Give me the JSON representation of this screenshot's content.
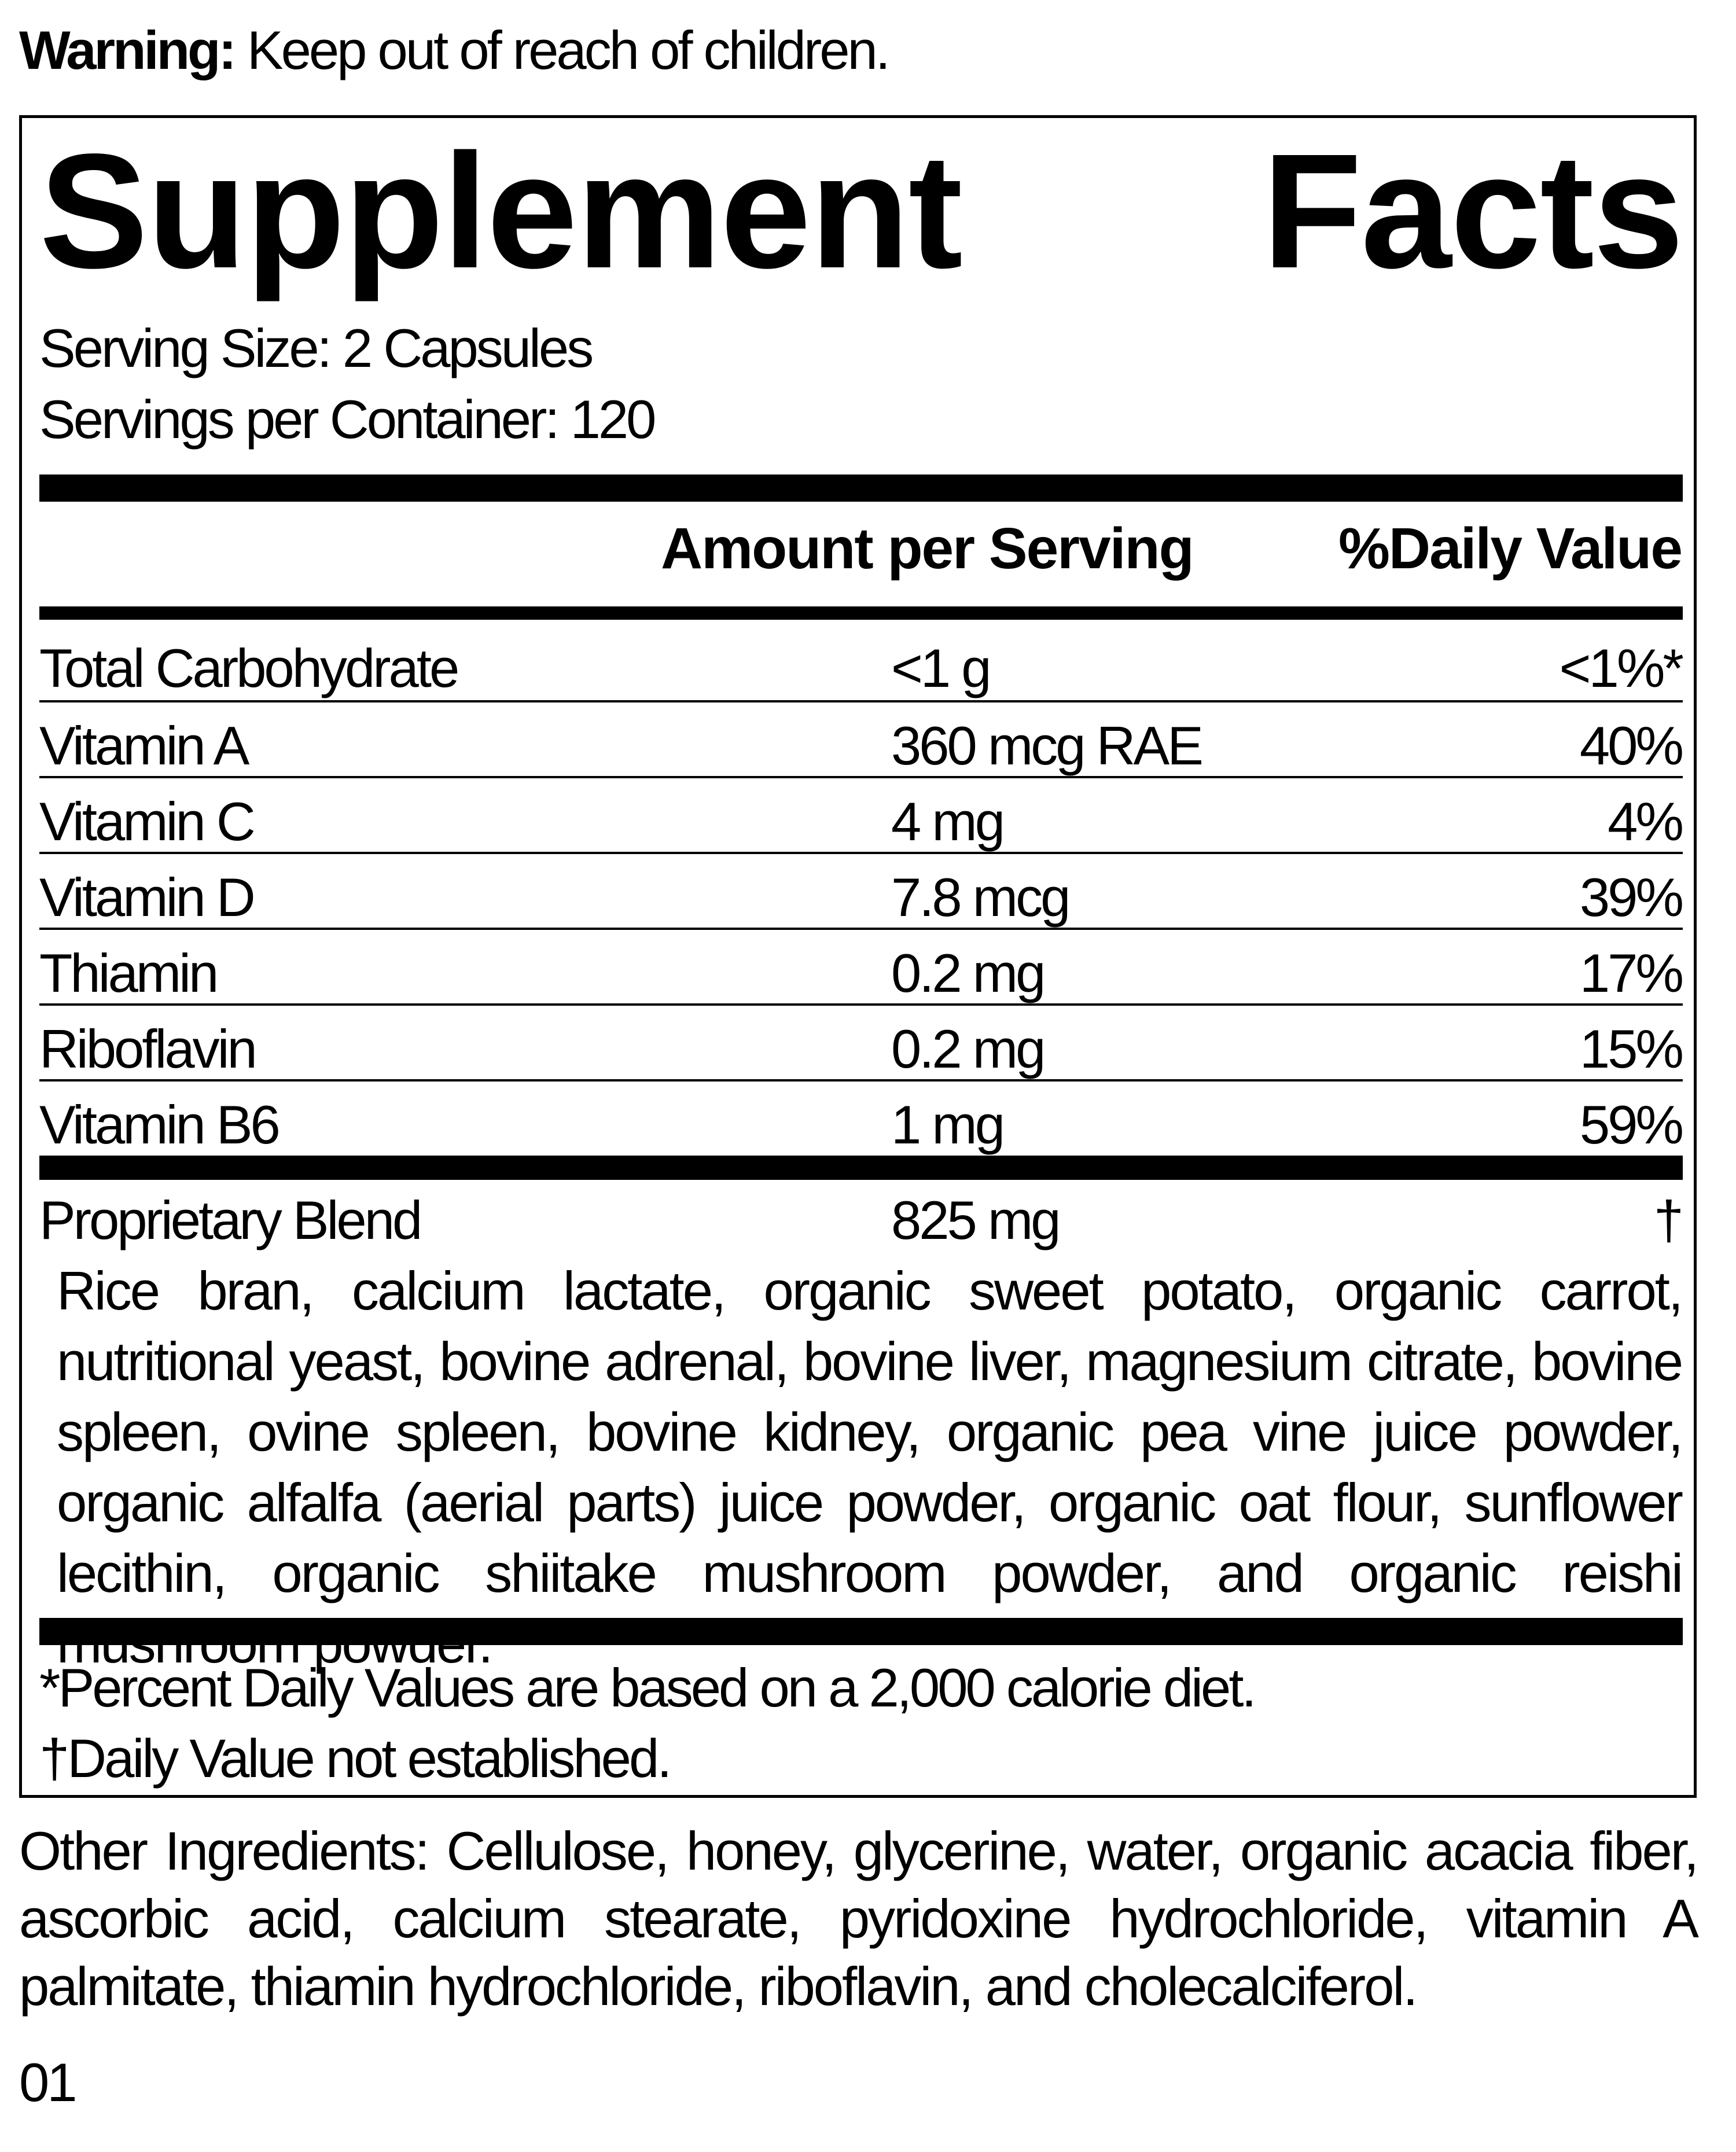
{
  "warning": {
    "label": "Warning:",
    "text": "Keep out of reach of children."
  },
  "title": {
    "word1": "Supplement",
    "word2": "Facts"
  },
  "serving_size": "Serving Size: 2 Capsules",
  "servings_per_container": "Servings per Container: 120",
  "header": {
    "amount": "Amount per Serving",
    "daily_value": "%Daily Value"
  },
  "rows": [
    {
      "name": "Total Carbohydrate",
      "amount": "<1 g",
      "dv": "<1%*"
    },
    {
      "name": "Vitamin A",
      "amount": "360 mcg RAE",
      "dv": "40%"
    },
    {
      "name": "Vitamin C",
      "amount": "4 mg",
      "dv": "4%"
    },
    {
      "name": "Vitamin D",
      "amount": "7.8 mcg",
      "dv": "39%"
    },
    {
      "name": "Thiamin",
      "amount": "0.2 mg",
      "dv": "17%"
    },
    {
      "name": "Riboflavin",
      "amount": "0.2 mg",
      "dv": "15%"
    },
    {
      "name": "Vitamin B6",
      "amount": "1 mg",
      "dv": "59%"
    }
  ],
  "blend": {
    "name": "Proprietary Blend",
    "amount": "825 mg",
    "dv": "†",
    "ingredients": "Rice bran, calcium lactate, organic sweet potato, organic carrot, nutritional yeast, bovine adrenal, bovine liver, magnesium citrate, bovine spleen, ovine spleen, bovine kidney, organic pea vine juice powder, organic alfalfa (aerial parts) juice powder, organic oat flour, sunflower lecithin, organic shiitake mushroom powder, and organic reishi mushroom powder."
  },
  "footnotes": [
    "*Percent Daily Values are based on a 2,000 calorie diet.",
    "†Daily Value not established."
  ],
  "other_ingredients": "Other Ingredients: Cellulose, honey, glycerine, water, organic acacia fiber, ascorbic acid, calcium stearate, pyridoxine hydrochloride, vitamin A palmitate, thiamin hydrochloride, riboflavin, and cholecalciferol.",
  "code": "01"
}
